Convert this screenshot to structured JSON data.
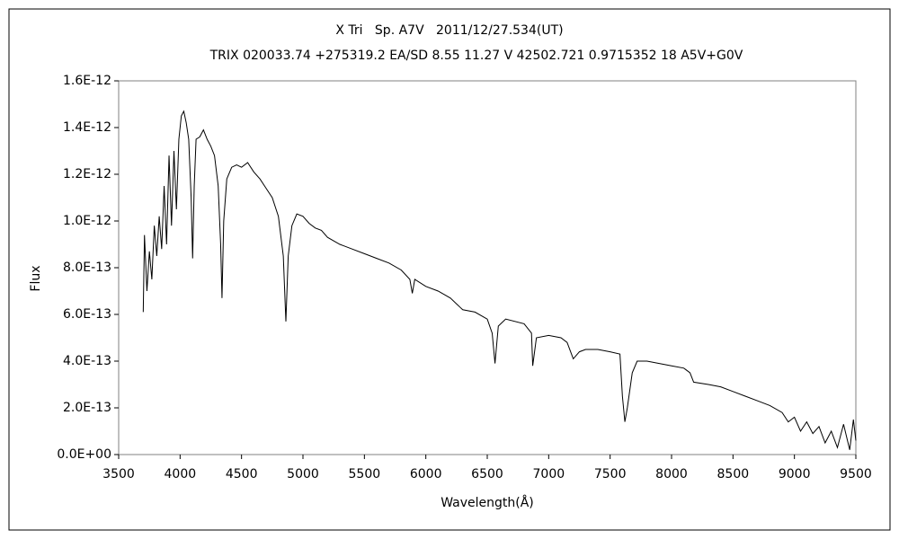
{
  "chart_data": {
    "type": "line",
    "title": "X Tri   Sp. A7V   2011/12/27.534(UT)",
    "subtitle": "TRIX 020033.74 +275319.2 EA/SD 8.55 11.27 V 42502.721 0.9715352 18 A5V+G0V",
    "xlabel": "Wavelength(Å)",
    "ylabel": "Flux",
    "color": "#000000",
    "xlim": [
      3500,
      9500
    ],
    "xticks": [
      3500,
      4000,
      4500,
      5000,
      5500,
      6000,
      6500,
      7000,
      7500,
      8000,
      8500,
      9000,
      9500
    ],
    "ylim": [
      0,
      1.6e-12
    ],
    "yticks": [
      {
        "value": 0,
        "label": "0.0E+00"
      },
      {
        "value": 2e-13,
        "label": "2.0E-13"
      },
      {
        "value": 4e-13,
        "label": "4.0E-13"
      },
      {
        "value": 6e-13,
        "label": "6.0E-13"
      },
      {
        "value": 8e-13,
        "label": "8.0E-13"
      },
      {
        "value": 1e-12,
        "label": "1.0E-12"
      },
      {
        "value": 1.2e-12,
        "label": "1.2E-12"
      },
      {
        "value": 1.4e-12,
        "label": "1.4E-12"
      },
      {
        "value": 1.6e-12,
        "label": "1.6E-12"
      }
    ],
    "x": [
      3700,
      3710,
      3730,
      3750,
      3770,
      3790,
      3810,
      3830,
      3850,
      3870,
      3890,
      3910,
      3930,
      3950,
      3970,
      3990,
      4010,
      4030,
      4050,
      4070,
      4090,
      4102,
      4115,
      4130,
      4160,
      4190,
      4220,
      4250,
      4280,
      4310,
      4330,
      4341,
      4355,
      4380,
      4420,
      4460,
      4500,
      4550,
      4600,
      4650,
      4700,
      4750,
      4800,
      4840,
      4861,
      4880,
      4910,
      4950,
      5000,
      5050,
      5100,
      5150,
      5200,
      5300,
      5400,
      5500,
      5600,
      5700,
      5800,
      5870,
      5890,
      5910,
      6000,
      6100,
      6200,
      6280,
      6300,
      6400,
      6500,
      6540,
      6563,
      6590,
      6650,
      6800,
      6860,
      6870,
      6900,
      7000,
      7100,
      7150,
      7200,
      7250,
      7300,
      7400,
      7500,
      7580,
      7600,
      7620,
      7640,
      7680,
      7720,
      7800,
      7900,
      8000,
      8100,
      8150,
      8180,
      8300,
      8400,
      8500,
      8600,
      8700,
      8800,
      8900,
      8950,
      9000,
      9050,
      9100,
      9150,
      9200,
      9250,
      9300,
      9350,
      9400,
      9450,
      9480,
      9500
    ],
    "values": [
      6.1e-13,
      9.4e-13,
      7e-13,
      8.7e-13,
      7.5e-13,
      9.8e-13,
      8.5e-13,
      1.02e-12,
      8.8e-13,
      1.15e-12,
      9e-13,
      1.28e-12,
      9.8e-13,
      1.3e-12,
      1.05e-12,
      1.35e-12,
      1.45e-12,
      1.47e-12,
      1.42e-12,
      1.35e-12,
      1.1e-12,
      8.4e-13,
      1.15e-12,
      1.35e-12,
      1.36e-12,
      1.39e-12,
      1.35e-12,
      1.32e-12,
      1.28e-12,
      1.15e-12,
      9e-13,
      6.7e-13,
      1e-12,
      1.18e-12,
      1.23e-12,
      1.24e-12,
      1.23e-12,
      1.25e-12,
      1.21e-12,
      1.18e-12,
      1.14e-12,
      1.1e-12,
      1.02e-12,
      8.5e-13,
      5.7e-13,
      8.5e-13,
      9.8e-13,
      1.03e-12,
      1.02e-12,
      9.9e-13,
      9.7e-13,
      9.6e-13,
      9.3e-13,
      9e-13,
      8.8e-13,
      8.6e-13,
      8.4e-13,
      8.2e-13,
      7.9e-13,
      7.5e-13,
      6.9e-13,
      7.5e-13,
      7.2e-13,
      7e-13,
      6.7e-13,
      6.3e-13,
      6.2e-13,
      6.1e-13,
      5.8e-13,
      5.2e-13,
      3.9e-13,
      5.5e-13,
      5.8e-13,
      5.6e-13,
      5.2e-13,
      3.8e-13,
      5e-13,
      5.1e-13,
      5e-13,
      4.8e-13,
      4.1e-13,
      4.4e-13,
      4.5e-13,
      4.5e-13,
      4.4e-13,
      4.3e-13,
      2.5e-13,
      1.4e-13,
      2e-13,
      3.5e-13,
      4e-13,
      4e-13,
      3.9e-13,
      3.8e-13,
      3.7e-13,
      3.5e-13,
      3.1e-13,
      3e-13,
      2.9e-13,
      2.7e-13,
      2.5e-13,
      2.3e-13,
      2.1e-13,
      1.8e-13,
      1.4e-13,
      1.6e-13,
      1e-13,
      1.4e-13,
      9e-14,
      1.2e-13,
      5e-14,
      1e-13,
      3e-14,
      1.3e-13,
      2e-14,
      1.5e-13,
      6e-14
    ]
  }
}
